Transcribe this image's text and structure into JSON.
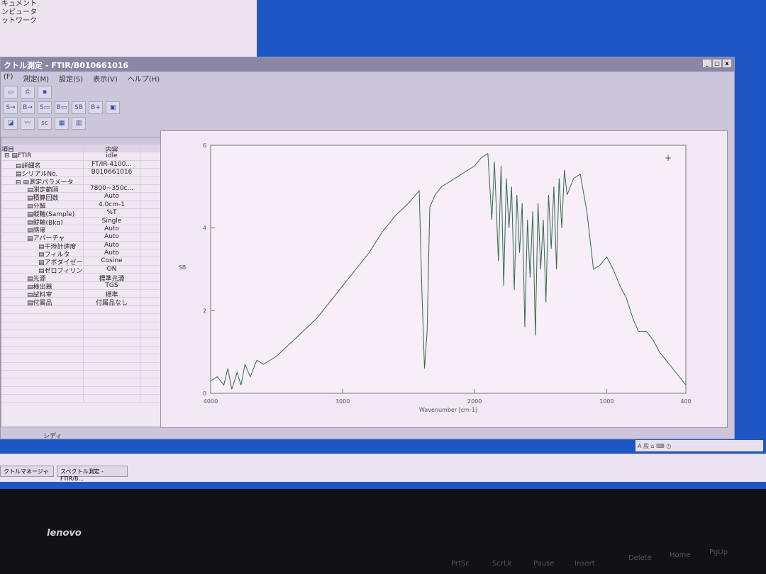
{
  "background_window": {
    "items": [
      "キュメント",
      "ンピュータ",
      "ットワーク"
    ]
  },
  "window": {
    "title": "クトル測定 - FTIR/B010661016",
    "controls": [
      "_",
      "□",
      "x"
    ],
    "menu": [
      "(F)",
      "測定(M)",
      "設定(S)",
      "表示(V)",
      "ヘルプ(H)"
    ]
  },
  "toolbar_icons": [
    "ftir-icon",
    "print-icon",
    "save-icon",
    "measure-sample-icon",
    "measure-bkg-icon",
    "sample-icon",
    "bkg-icon",
    "sample-bkg-icon",
    "bt-icon",
    "monitor-icon",
    "view-icon",
    "spectrum-icon",
    "sc-icon",
    "grid-icon",
    "bars-icon"
  ],
  "panel": {
    "close": "x",
    "headers": [
      "項目",
      "内容"
    ],
    "rows": [
      {
        "label": "FTIR",
        "value": "idle",
        "level": 0,
        "expand": "⊟"
      },
      {
        "label": "詳細名",
        "value": "FT/IR-4100...",
        "level": 1
      },
      {
        "label": "シリアルNo.",
        "value": "B010661016",
        "level": 1
      },
      {
        "label": "測定パラメータ",
        "value": "",
        "level": 1,
        "expand": "⊟"
      },
      {
        "label": "測定範囲",
        "value": "7800~350c...",
        "level": 2
      },
      {
        "label": "積算回数",
        "value": "Auto",
        "level": 2
      },
      {
        "label": "分解",
        "value": "4.0cm-1",
        "level": 2
      },
      {
        "label": "縦軸(Sample)",
        "value": "%T",
        "level": 2
      },
      {
        "label": "縦軸(Bkg)",
        "value": "Single",
        "level": 2
      },
      {
        "label": "感度",
        "value": "Auto",
        "level": 2
      },
      {
        "label": "アパーチャ",
        "value": "Auto",
        "level": 2
      },
      {
        "label": "干渉計速度",
        "value": "Auto",
        "level": 3
      },
      {
        "label": "フィルタ",
        "value": "Auto",
        "level": 3
      },
      {
        "label": "アポダイゼー...",
        "value": "Cosine",
        "level": 3
      },
      {
        "label": "ゼロフィリング",
        "value": "ON",
        "level": 3
      },
      {
        "label": "光源",
        "value": "標準光源",
        "level": 2
      },
      {
        "label": "検出器",
        "value": "TGS",
        "level": 2
      },
      {
        "label": "試料室",
        "value": "標準",
        "level": 2
      },
      {
        "label": "付属品",
        "value": "付属品なし",
        "level": 2
      }
    ]
  },
  "status": "レディ",
  "chart_data": {
    "type": "line",
    "xlabel": "Wavenumber [cm-1]",
    "ylabel": "SB",
    "xlim": [
      4000,
      400
    ],
    "ylim": [
      0,
      6
    ],
    "x_ticks": [
      4000,
      3000,
      2000,
      1000,
      400
    ],
    "y_ticks": [
      0,
      2,
      4,
      6
    ],
    "line_color": "#2e6b4a",
    "grid": false,
    "series": [
      {
        "x": [
          4000,
          3950,
          3900,
          3870,
          3840,
          3800,
          3770,
          3740,
          3700,
          3650,
          3600,
          3500,
          3400,
          3300,
          3200,
          3100,
          3000,
          2900,
          2800,
          2700,
          2600,
          2500,
          2420,
          2400,
          2380,
          2360,
          2340,
          2300,
          2250,
          2200,
          2100,
          2000,
          1950,
          1900,
          1870,
          1850,
          1820,
          1800,
          1780,
          1760,
          1740,
          1720,
          1700,
          1680,
          1660,
          1640,
          1620,
          1600,
          1580,
          1560,
          1540,
          1520,
          1500,
          1480,
          1460,
          1440,
          1420,
          1400,
          1380,
          1360,
          1340,
          1320,
          1300,
          1250,
          1200,
          1150,
          1100,
          1050,
          1000,
          950,
          900,
          850,
          800,
          760,
          700,
          650,
          600,
          550,
          500,
          450,
          400
        ],
        "y": [
          0.3,
          0.4,
          0.2,
          0.6,
          0.1,
          0.5,
          0.2,
          0.7,
          0.4,
          0.8,
          0.7,
          0.9,
          1.2,
          1.5,
          1.8,
          2.2,
          2.6,
          3.0,
          3.4,
          3.9,
          4.3,
          4.6,
          4.9,
          2.5,
          0.6,
          1.5,
          4.5,
          4.8,
          5.0,
          5.1,
          5.3,
          5.5,
          5.7,
          5.8,
          4.2,
          5.6,
          3.2,
          5.5,
          2.6,
          5.2,
          4.0,
          5.0,
          2.5,
          4.8,
          3.4,
          4.6,
          1.6,
          4.2,
          2.8,
          4.4,
          1.4,
          4.6,
          3.0,
          4.2,
          2.2,
          4.8,
          3.5,
          5.0,
          3.0,
          5.2,
          4.0,
          5.4,
          4.8,
          5.2,
          5.3,
          4.4,
          3.0,
          3.1,
          3.3,
          3.0,
          2.6,
          2.3,
          1.8,
          1.5,
          1.5,
          1.3,
          1.0,
          0.8,
          0.6,
          0.4,
          0.2
        ]
      }
    ]
  },
  "taskbar": {
    "items": [
      "クトルマネージャ",
      "スペクトル測定 - FTIR/B..."
    ],
    "tray": "A 般 ⌂ ⌨ ◷"
  },
  "bezel": {
    "logo": "lenovo",
    "keys": [
      "PrtSc",
      "ScrLk",
      "Pause",
      "Insert",
      "Delete",
      "Home",
      "PgUp"
    ]
  }
}
